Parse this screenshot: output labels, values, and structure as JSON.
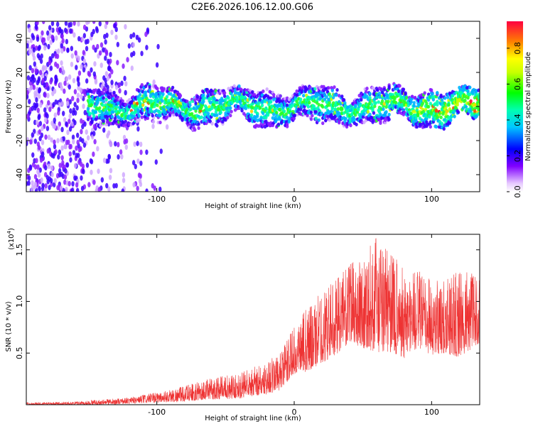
{
  "chart_data": [
    {
      "type": "heatmap",
      "title": "C2E6.2026.106.12.00.G06",
      "xlabel": "Height of straight line (km)",
      "ylabel": "Frequency (Hz)",
      "xlim": [
        -195,
        135
      ],
      "ylim": [
        -50,
        50
      ],
      "x_ticks": [
        -100,
        0,
        100
      ],
      "y_ticks": [
        -40,
        -20,
        0,
        20,
        40
      ],
      "colorbar": {
        "label": "Normalized spectral amplitude",
        "range": [
          0,
          0.95
        ],
        "ticks": [
          "0.0",
          "0.2",
          "0.4",
          "0.6",
          "0.8"
        ],
        "tick_values": [
          0.0,
          0.2,
          0.4,
          0.6,
          0.8
        ]
      },
      "description_points": {
        "noise_region_x": [
          -195,
          -100
        ],
        "signal_band_center_hz": 0,
        "signal_band_start_x": -150,
        "high_amplitude_region_x": [
          60,
          135
        ]
      }
    },
    {
      "type": "line",
      "xlabel": "Height of straight line (km)",
      "ylabel": "SNR (10 * v/v)",
      "scale_label": "(x10",
      "scale_exponent": "4",
      "scale_close": ")",
      "xlim": [
        -195,
        135
      ],
      "ylim": [
        0,
        1.65
      ],
      "x_ticks": [
        -100,
        0,
        100
      ],
      "y_ticks": [
        "0.5",
        "1.0",
        "1.5"
      ],
      "y_tick_values": [
        0.5,
        1.0,
        1.5
      ],
      "color": "#ee3333",
      "envelope": {
        "x": [
          -195,
          -160,
          -140,
          -120,
          -100,
          -80,
          -60,
          -40,
          -20,
          -10,
          0,
          10,
          20,
          30,
          40,
          50,
          60,
          70,
          80,
          90,
          100,
          110,
          120,
          135
        ],
        "low": [
          0.0,
          0.0,
          0.0,
          0.01,
          0.02,
          0.03,
          0.05,
          0.06,
          0.1,
          0.14,
          0.3,
          0.32,
          0.4,
          0.48,
          0.6,
          0.55,
          0.5,
          0.5,
          0.45,
          0.55,
          0.48,
          0.5,
          0.45,
          0.6
        ],
        "high": [
          0.02,
          0.03,
          0.05,
          0.07,
          0.12,
          0.18,
          0.26,
          0.3,
          0.42,
          0.5,
          0.75,
          0.95,
          1.1,
          1.2,
          1.35,
          1.45,
          1.62,
          1.45,
          1.35,
          1.3,
          1.2,
          1.2,
          1.3,
          1.25
        ]
      }
    }
  ]
}
